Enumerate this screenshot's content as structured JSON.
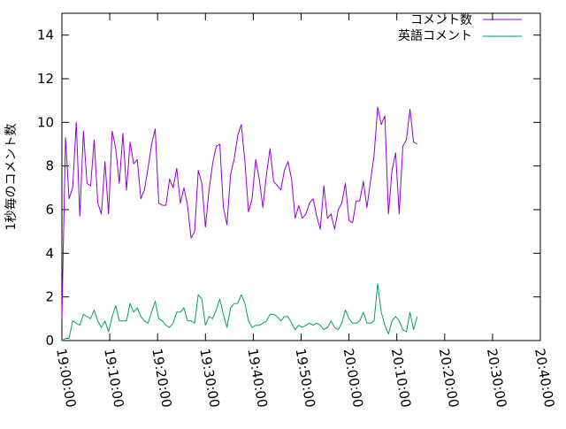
{
  "chart_data": {
    "type": "line",
    "title": "",
    "xlabel": "",
    "ylabel": "1秒毎のコメント数",
    "ylim": [
      0,
      15
    ],
    "yticks": [
      0,
      2,
      4,
      6,
      8,
      10,
      12,
      14
    ],
    "xlim": [
      "19:00:00",
      "20:40:00"
    ],
    "x_start": "19:00:00",
    "x_step_seconds": 45,
    "xtick_labels": [
      "19:00:00",
      "19:10:00",
      "19:20:00",
      "19:30:00",
      "19:40:00",
      "19:50:00",
      "20:00:00",
      "20:10:00",
      "20:20:00",
      "20:30:00",
      "20:40:00"
    ],
    "grid": false,
    "legend_position": "top-right",
    "series": [
      {
        "name": "コメント数",
        "color": "#9400d3",
        "values": [
          1.0,
          9.3,
          6.5,
          7.0,
          10.0,
          5.7,
          9.6,
          7.2,
          7.1,
          9.2,
          6.3,
          5.8,
          8.2,
          5.8,
          9.6,
          8.8,
          7.2,
          9.5,
          6.9,
          9.1,
          8.1,
          8.3,
          6.5,
          6.9,
          7.9,
          9.0,
          9.7,
          6.3,
          6.2,
          6.2,
          7.4,
          7.0,
          7.9,
          6.3,
          7.0,
          6.2,
          4.7,
          5.0,
          7.8,
          7.2,
          5.2,
          6.9,
          8.1,
          8.9,
          9.0,
          6.1,
          5.3,
          7.6,
          8.3,
          9.4,
          9.9,
          8.2,
          5.9,
          6.5,
          8.3,
          7.4,
          6.1,
          7.6,
          8.8,
          7.3,
          7.1,
          6.9,
          7.8,
          8.2,
          7.4,
          5.6,
          6.2,
          5.6,
          5.8,
          6.3,
          6.5,
          5.7,
          5.1,
          7.1,
          5.6,
          5.8,
          5.1,
          6.0,
          6.3,
          7.2,
          5.5,
          5.4,
          6.4,
          6.4,
          7.3,
          6.1,
          7.3,
          8.5,
          10.7,
          9.9,
          10.3,
          5.8,
          7.8,
          8.6,
          5.8,
          8.9,
          9.2,
          10.6,
          9.1,
          9.0
        ]
      },
      {
        "name": "英語コメント",
        "color": "#009e73",
        "values": [
          0.0,
          0.1,
          0.1,
          0.9,
          0.8,
          0.7,
          1.2,
          1.1,
          1.0,
          1.4,
          0.9,
          0.6,
          0.9,
          0.4,
          1.1,
          1.6,
          0.9,
          0.9,
          0.9,
          1.7,
          1.3,
          1.5,
          1.1,
          0.9,
          0.8,
          1.3,
          1.8,
          1.0,
          0.9,
          0.7,
          0.6,
          0.8,
          1.3,
          1.3,
          1.5,
          0.9,
          0.9,
          0.8,
          2.1,
          1.9,
          0.7,
          1.1,
          1.0,
          1.4,
          1.9,
          1.2,
          0.6,
          1.5,
          1.7,
          1.7,
          2.1,
          1.7,
          0.9,
          0.6,
          0.7,
          0.7,
          0.8,
          0.9,
          1.2,
          1.2,
          1.1,
          0.9,
          1.1,
          1.1,
          0.8,
          0.5,
          0.7,
          0.6,
          0.7,
          0.8,
          0.7,
          0.8,
          0.7,
          0.5,
          0.6,
          0.9,
          0.6,
          0.5,
          0.8,
          1.4,
          1.0,
          0.8,
          0.8,
          0.9,
          1.3,
          0.8,
          0.8,
          0.9,
          2.6,
          1.3,
          0.7,
          0.3,
          0.9,
          1.1,
          0.9,
          0.5,
          0.4,
          1.3,
          0.5,
          1.1
        ]
      }
    ]
  }
}
